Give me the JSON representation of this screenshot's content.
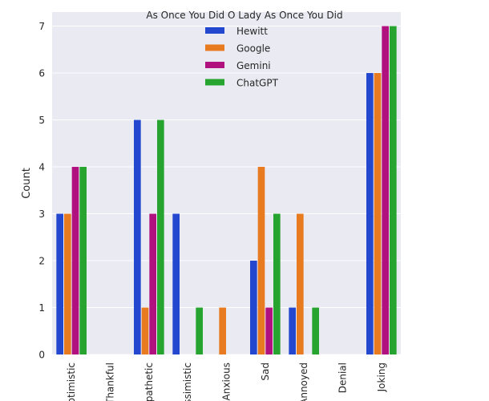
{
  "chart_data": {
    "type": "bar",
    "categories": [
      "Optimistic",
      "Thankful",
      "Empathetic",
      "Pessimistic",
      "Anxious",
      "Sad",
      "Annoyed",
      "Denial",
      "Joking"
    ],
    "series": [
      {
        "name": "Hewitt",
        "color": "#2347cf",
        "values": [
          3,
          0,
          5,
          3,
          0,
          2,
          1,
          0,
          6
        ]
      },
      {
        "name": "Google",
        "color": "#e87b20",
        "values": [
          3,
          0,
          1,
          0,
          1,
          4,
          3,
          0,
          6
        ]
      },
      {
        "name": "Gemini",
        "color": "#b0117f",
        "values": [
          4,
          0,
          3,
          0,
          0,
          1,
          0,
          0,
          7
        ]
      },
      {
        "name": "ChatGPT",
        "color": "#27a32f",
        "values": [
          4,
          0,
          5,
          1,
          0,
          3,
          1,
          0,
          7
        ]
      }
    ],
    "title": "",
    "legend_title": "As Once You Did O Lady As Once You Did",
    "legend_position": "top-center",
    "xlabel": "",
    "ylabel": "Count",
    "ylim": [
      0,
      7.3
    ],
    "yticks": [
      0,
      1,
      2,
      3,
      4,
      5,
      6,
      7
    ],
    "grid": true,
    "background": "#eaeaf2"
  }
}
